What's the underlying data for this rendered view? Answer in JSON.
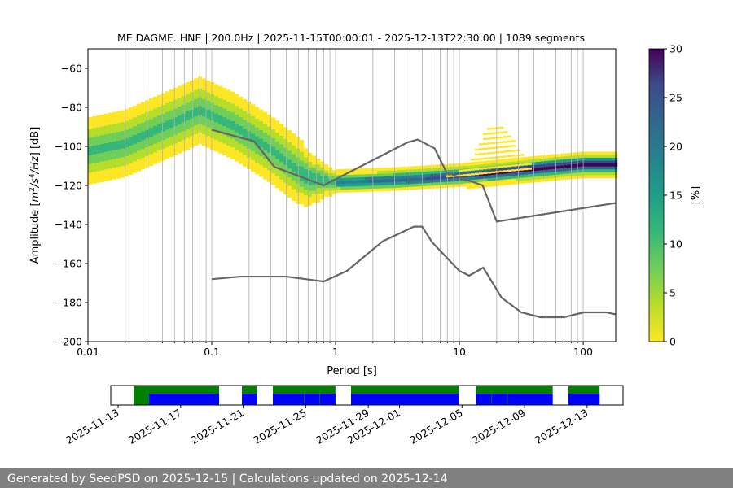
{
  "chart_data": {
    "type": "heatmap",
    "title": "ME.DAGME..HNE | 200.0Hz | 2025-11-15T00:00:01 - 2025-12-13T22:30:00 | 1089 segments",
    "xlabel": "Period [s]",
    "ylabel": "Amplitude [m²/s⁴/Hz] [dB]",
    "xscale": "log",
    "xlim": [
      0.01,
      183
    ],
    "ylim": [
      -200,
      -50
    ],
    "xticks": [
      0.01,
      0.1,
      1,
      10,
      100
    ],
    "xtick_labels": [
      "0.01",
      "0.1",
      "1",
      "10",
      "100"
    ],
    "yticks": [
      -200,
      -180,
      -160,
      -140,
      -120,
      -100,
      -80,
      -60
    ],
    "ytick_labels": [
      "−200",
      "−180",
      "−160",
      "−140",
      "−120",
      "−100",
      "−80",
      "−60"
    ],
    "grid": "vertical at log minor/major ticks",
    "colorbar": {
      "label": "[%]",
      "range": [
        0,
        30
      ],
      "ticks": [
        0,
        5,
        10,
        15,
        20,
        25,
        30
      ],
      "tick_labels": [
        "0",
        "5",
        "10",
        "15",
        "20",
        "25",
        "30"
      ],
      "colormap": "viridis_r"
    },
    "mode_curve": {
      "period": [
        0.01,
        0.02,
        0.05,
        0.08,
        0.15,
        0.3,
        0.6,
        1,
        3,
        10,
        30,
        100,
        183
      ],
      "db": [
        -103,
        -99,
        -88,
        -82,
        -90,
        -102,
        -117,
        -119,
        -118,
        -116,
        -113,
        -110,
        -110
      ]
    },
    "series": [
      {
        "name": "NHNM",
        "color": "#666666",
        "period": [
          0.1,
          0.22,
          0.32,
          0.8,
          3.8,
          4.6,
          6.3,
          7.9,
          15.4,
          20,
          183
        ],
        "db": [
          -91.5,
          -97.4,
          -110.5,
          -120,
          -98,
          -96.5,
          -101,
          -113.5,
          -120,
          -138.5,
          -129
        ]
      },
      {
        "name": "NLNM",
        "color": "#666666",
        "period": [
          0.1,
          0.17,
          0.4,
          0.8,
          1.24,
          2.4,
          4.3,
          5,
          6,
          10,
          12,
          15.6,
          21.9,
          31.6,
          45,
          70,
          101,
          154,
          183
        ],
        "db": [
          -168,
          -166.7,
          -166.7,
          -169.2,
          -163.7,
          -148.6,
          -141.1,
          -141.1,
          -149,
          -163.8,
          -166.2,
          -162.1,
          -177.5,
          -185,
          -187.5,
          -187.5,
          -185,
          -185,
          -186
        ]
      }
    ],
    "availability": {
      "tick_labels": [
        "2025-11-13",
        "2025-11-17",
        "2025-11-21",
        "2025-11-25",
        "2025-11-29",
        "2025-12-01",
        "2025-12-05",
        "2025-12-09",
        "2025-12-13"
      ],
      "tick_days": [
        0,
        4,
        8,
        12,
        16,
        18,
        22,
        26,
        30
      ],
      "xlim_days": [
        -0.47,
        32.3
      ],
      "data_green": [
        [
          1,
          6.46
        ],
        [
          7.92,
          8.9
        ],
        [
          9.9,
          13.9
        ],
        [
          14.9,
          21.8
        ],
        [
          22.9,
          27.8
        ],
        [
          28.8,
          30.8
        ]
      ],
      "psd_blue": [
        [
          1.98,
          6.46
        ],
        [
          7.92,
          8.9
        ],
        [
          9.9,
          11.88
        ],
        [
          11.92,
          12.88
        ],
        [
          12.92,
          13.9
        ],
        [
          14.9,
          21.8
        ],
        [
          22.9,
          23.88
        ],
        [
          23.92,
          24.88
        ],
        [
          24.92,
          27.8
        ],
        [
          28.8,
          30.8
        ]
      ]
    }
  },
  "footer": "Generated by SeedPSD on 2025-12-15 | Calculations updated on 2025-12-14"
}
